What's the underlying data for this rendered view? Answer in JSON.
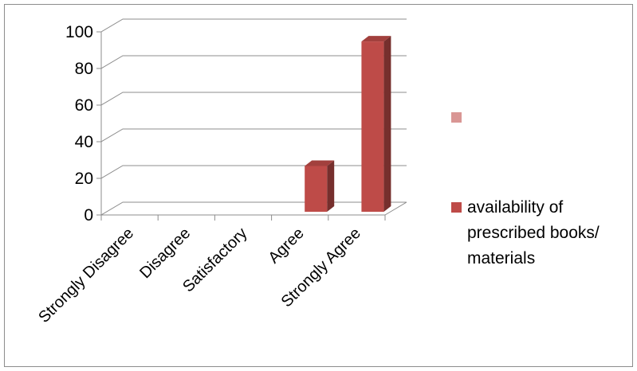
{
  "chart_data": {
    "type": "bar",
    "categories": [
      "Strongly Disagree",
      "Disagree",
      "Satisfactory",
      "Agree",
      "Strongly Agree"
    ],
    "series": [
      {
        "name": "",
        "values": [
          null,
          null,
          null,
          null,
          null
        ],
        "color": "#d99694"
      },
      {
        "name": "availability of prescribed books/ materials",
        "values": [
          0,
          0,
          0,
          25,
          93
        ],
        "color": "#be4b48"
      }
    ],
    "legend_lines": [
      "",
      "availability of\nprescribed books/\nmaterials"
    ],
    "ylim": [
      0,
      100
    ],
    "yticks": [
      0,
      20,
      40,
      60,
      80,
      100
    ],
    "three_d": true,
    "grid": true,
    "legend_position": "right",
    "title": "",
    "xlabel": "",
    "ylabel": ""
  }
}
